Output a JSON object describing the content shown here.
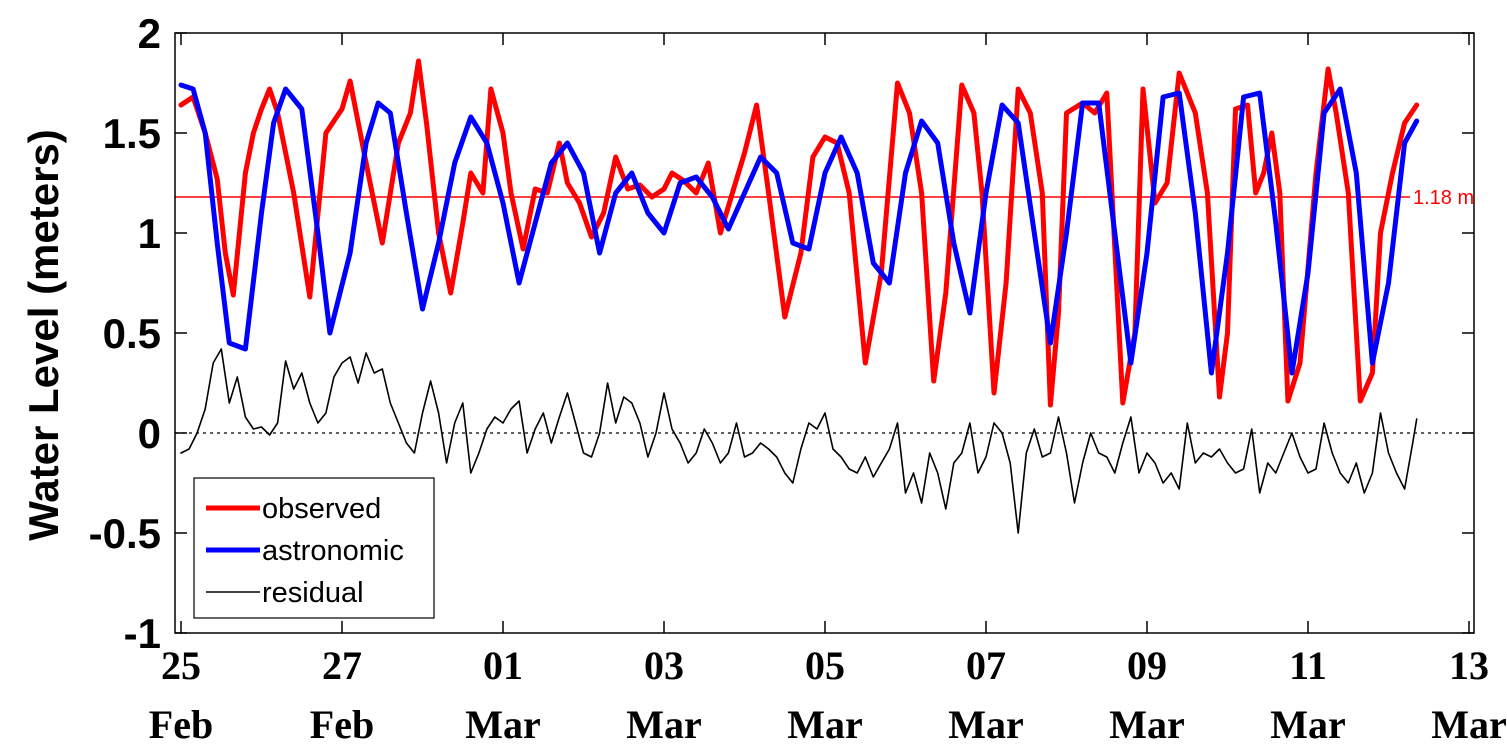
{
  "chart_data": {
    "type": "line",
    "title": "",
    "ylabel": "Water Level (meters)",
    "xlabel": "",
    "ylim": [
      -1,
      2
    ],
    "xlim_days": [
      0,
      16.4
    ],
    "yticks": [
      {
        "value": 2,
        "label": "2"
      },
      {
        "value": 1.5,
        "label": "1.5"
      },
      {
        "value": 1,
        "label": "1"
      },
      {
        "value": 0.5,
        "label": "0.5"
      },
      {
        "value": 0,
        "label": "0"
      },
      {
        "value": -0.5,
        "label": "-0.5"
      },
      {
        "value": -1,
        "label": "-1"
      }
    ],
    "xticks": [
      {
        "day": 0,
        "day_label": "25",
        "month_label": "Feb"
      },
      {
        "day": 2,
        "day_label": "27",
        "month_label": "Feb"
      },
      {
        "day": 4,
        "day_label": "01",
        "month_label": "Mar"
      },
      {
        "day": 6,
        "day_label": "03",
        "month_label": "Mar"
      },
      {
        "day": 8,
        "day_label": "05",
        "month_label": "Mar"
      },
      {
        "day": 10,
        "day_label": "07",
        "month_label": "Mar"
      },
      {
        "day": 12,
        "day_label": "09",
        "month_label": "Mar"
      },
      {
        "day": 14,
        "day_label": "11",
        "month_label": "Mar"
      },
      {
        "day": 16,
        "day_label": "13",
        "month_label": "Mar"
      }
    ],
    "reference_line": {
      "value": 1.18,
      "label": "1.18 m",
      "color": "#ff0000"
    },
    "zero_line": {
      "value": 0,
      "style": "dotted"
    },
    "legend": {
      "position": "bottom-left"
    },
    "series": [
      {
        "name": "observed",
        "color": "#ff0000",
        "x": [
          0.0,
          0.15,
          0.3,
          0.45,
          0.55,
          0.65,
          0.8,
          0.9,
          1.0,
          1.1,
          1.2,
          1.4,
          1.6,
          1.8,
          1.9,
          2.0,
          2.1,
          2.3,
          2.5,
          2.7,
          2.85,
          2.95,
          3.05,
          3.2,
          3.35,
          3.5,
          3.6,
          3.75,
          3.85,
          4.0,
          4.1,
          4.25,
          4.4,
          4.55,
          4.7,
          4.8,
          4.95,
          5.1,
          5.25,
          5.4,
          5.55,
          5.7,
          5.85,
          6.0,
          6.1,
          6.25,
          6.4,
          6.55,
          6.7,
          6.85,
          7.0,
          7.15,
          7.3,
          7.5,
          7.7,
          7.85,
          8.0,
          8.15,
          8.3,
          8.5,
          8.7,
          8.9,
          9.05,
          9.2,
          9.35,
          9.5,
          9.7,
          9.85,
          9.95,
          10.1,
          10.25,
          10.4,
          10.55,
          10.7,
          10.8,
          10.9,
          11.0,
          11.2,
          11.35,
          11.5,
          11.7,
          11.85,
          11.95,
          12.1,
          12.25,
          12.4,
          12.6,
          12.75,
          12.9,
          13.0,
          13.1,
          13.25,
          13.35,
          13.45,
          13.55,
          13.65,
          13.75,
          13.9,
          14.1,
          14.25,
          14.35,
          14.5,
          14.65,
          14.8,
          14.9,
          15.05,
          15.2,
          15.35
        ],
        "values": [
          1.64,
          1.68,
          1.5,
          1.27,
          0.9,
          0.69,
          1.3,
          1.5,
          1.62,
          1.72,
          1.6,
          1.2,
          0.68,
          1.5,
          1.56,
          1.62,
          1.76,
          1.35,
          0.95,
          1.45,
          1.6,
          1.86,
          1.55,
          1.0,
          0.7,
          1.05,
          1.3,
          1.2,
          1.72,
          1.5,
          1.2,
          0.92,
          1.22,
          1.2,
          1.45,
          1.25,
          1.15,
          0.98,
          1.1,
          1.38,
          1.22,
          1.24,
          1.18,
          1.22,
          1.3,
          1.26,
          1.2,
          1.35,
          1.0,
          1.2,
          1.4,
          1.64,
          1.2,
          0.58,
          0.9,
          1.38,
          1.48,
          1.45,
          1.2,
          0.35,
          0.8,
          1.75,
          1.6,
          1.2,
          0.26,
          0.7,
          1.74,
          1.6,
          1.2,
          0.2,
          0.75,
          1.72,
          1.6,
          1.2,
          0.14,
          0.6,
          1.6,
          1.65,
          1.6,
          1.7,
          0.15,
          0.5,
          1.72,
          1.15,
          1.25,
          1.8,
          1.6,
          1.2,
          0.18,
          0.5,
          1.62,
          1.64,
          1.2,
          1.3,
          1.5,
          1.2,
          0.16,
          0.35,
          1.3,
          1.82,
          1.6,
          1.2,
          0.16,
          0.3,
          1.0,
          1.3,
          1.55,
          1.64
        ]
      },
      {
        "name": "astronomic",
        "color": "#0000ff",
        "x": [
          0.0,
          0.15,
          0.3,
          0.45,
          0.6,
          0.8,
          1.0,
          1.15,
          1.3,
          1.5,
          1.7,
          1.85,
          2.1,
          2.3,
          2.45,
          2.6,
          2.8,
          3.0,
          3.2,
          3.4,
          3.6,
          3.8,
          4.0,
          4.2,
          4.4,
          4.6,
          4.8,
          5.0,
          5.2,
          5.4,
          5.6,
          5.8,
          6.0,
          6.2,
          6.4,
          6.6,
          6.8,
          7.0,
          7.2,
          7.4,
          7.6,
          7.8,
          8.0,
          8.2,
          8.4,
          8.6,
          8.8,
          9.0,
          9.2,
          9.4,
          9.6,
          9.8,
          10.0,
          10.2,
          10.4,
          10.6,
          10.8,
          11.0,
          11.2,
          11.4,
          11.6,
          11.8,
          12.0,
          12.2,
          12.4,
          12.6,
          12.8,
          13.0,
          13.2,
          13.4,
          13.6,
          13.8,
          14.0,
          14.2,
          14.4,
          14.6,
          14.8,
          15.0,
          15.2,
          15.35
        ],
        "values": [
          1.74,
          1.72,
          1.5,
          0.95,
          0.45,
          0.42,
          1.1,
          1.55,
          1.72,
          1.62,
          1.0,
          0.5,
          0.9,
          1.45,
          1.65,
          1.6,
          1.1,
          0.62,
          0.95,
          1.35,
          1.58,
          1.45,
          1.15,
          0.75,
          1.05,
          1.35,
          1.45,
          1.3,
          0.9,
          1.2,
          1.3,
          1.1,
          1.0,
          1.25,
          1.28,
          1.18,
          1.02,
          1.2,
          1.38,
          1.3,
          0.95,
          0.92,
          1.3,
          1.48,
          1.3,
          0.85,
          0.75,
          1.3,
          1.56,
          1.45,
          0.95,
          0.6,
          1.2,
          1.64,
          1.55,
          1.0,
          0.45,
          1.0,
          1.65,
          1.65,
          1.0,
          0.35,
          0.9,
          1.68,
          1.7,
          1.1,
          0.3,
          0.9,
          1.68,
          1.7,
          1.05,
          0.3,
          0.8,
          1.6,
          1.72,
          1.3,
          0.35,
          0.75,
          1.45,
          1.56
        ]
      },
      {
        "name": "residual",
        "color": "#000000",
        "x": [
          0.0,
          0.1,
          0.2,
          0.3,
          0.4,
          0.5,
          0.6,
          0.7,
          0.8,
          0.9,
          1.0,
          1.1,
          1.2,
          1.3,
          1.4,
          1.5,
          1.6,
          1.7,
          1.8,
          1.9,
          2.0,
          2.1,
          2.2,
          2.3,
          2.4,
          2.5,
          2.6,
          2.7,
          2.8,
          2.9,
          3.0,
          3.1,
          3.2,
          3.3,
          3.4,
          3.5,
          3.6,
          3.7,
          3.8,
          3.9,
          4.0,
          4.1,
          4.2,
          4.3,
          4.4,
          4.5,
          4.6,
          4.7,
          4.8,
          4.9,
          5.0,
          5.1,
          5.2,
          5.3,
          5.4,
          5.5,
          5.6,
          5.7,
          5.8,
          5.9,
          6.0,
          6.1,
          6.2,
          6.3,
          6.4,
          6.5,
          6.6,
          6.7,
          6.8,
          6.9,
          7.0,
          7.1,
          7.2,
          7.3,
          7.4,
          7.5,
          7.6,
          7.7,
          7.8,
          7.9,
          8.0,
          8.1,
          8.2,
          8.3,
          8.4,
          8.5,
          8.6,
          8.7,
          8.8,
          8.9,
          9.0,
          9.1,
          9.2,
          9.3,
          9.4,
          9.5,
          9.6,
          9.7,
          9.8,
          9.9,
          10.0,
          10.1,
          10.2,
          10.3,
          10.4,
          10.5,
          10.6,
          10.7,
          10.8,
          10.9,
          11.0,
          11.1,
          11.2,
          11.3,
          11.4,
          11.5,
          11.6,
          11.7,
          11.8,
          11.9,
          12.0,
          12.1,
          12.2,
          12.3,
          12.4,
          12.5,
          12.6,
          12.7,
          12.8,
          12.9,
          13.0,
          13.1,
          13.2,
          13.3,
          13.4,
          13.5,
          13.6,
          13.7,
          13.8,
          13.9,
          14.0,
          14.1,
          14.2,
          14.3,
          14.4,
          14.5,
          14.6,
          14.7,
          14.8,
          14.9,
          15.0,
          15.1,
          15.2,
          15.3,
          15.35
        ],
        "values": [
          -0.1,
          -0.08,
          0.0,
          0.12,
          0.35,
          0.42,
          0.15,
          0.28,
          0.08,
          0.02,
          0.03,
          -0.01,
          0.05,
          0.36,
          0.22,
          0.3,
          0.15,
          0.05,
          0.1,
          0.28,
          0.35,
          0.38,
          0.25,
          0.4,
          0.3,
          0.32,
          0.15,
          0.05,
          -0.05,
          -0.1,
          0.1,
          0.26,
          0.1,
          -0.15,
          0.05,
          0.15,
          -0.2,
          -0.1,
          0.02,
          0.08,
          0.05,
          0.12,
          0.16,
          -0.1,
          0.02,
          0.1,
          -0.05,
          0.08,
          0.2,
          0.05,
          -0.1,
          -0.12,
          0.0,
          0.25,
          0.05,
          0.18,
          0.15,
          0.05,
          -0.12,
          0.0,
          0.2,
          0.02,
          -0.05,
          -0.15,
          -0.1,
          0.02,
          -0.05,
          -0.15,
          -0.1,
          0.05,
          -0.12,
          -0.1,
          -0.05,
          -0.08,
          -0.12,
          -0.2,
          -0.25,
          -0.08,
          0.05,
          0.02,
          0.1,
          -0.08,
          -0.12,
          -0.18,
          -0.2,
          -0.12,
          -0.22,
          -0.15,
          -0.08,
          0.05,
          -0.3,
          -0.2,
          -0.35,
          -0.1,
          -0.2,
          -0.38,
          -0.15,
          -0.1,
          0.05,
          -0.2,
          -0.12,
          0.05,
          0.0,
          -0.15,
          -0.5,
          -0.1,
          0.02,
          -0.12,
          -0.1,
          0.08,
          -0.1,
          -0.35,
          -0.15,
          0.0,
          -0.1,
          -0.12,
          -0.2,
          -0.05,
          0.08,
          -0.2,
          -0.1,
          -0.15,
          -0.25,
          -0.2,
          -0.28,
          0.05,
          -0.15,
          -0.1,
          -0.12,
          -0.08,
          -0.15,
          -0.2,
          -0.18,
          0.02,
          -0.3,
          -0.15,
          -0.2,
          -0.1,
          0.0,
          -0.12,
          -0.2,
          -0.18,
          0.05,
          -0.1,
          -0.2,
          -0.25,
          -0.15,
          -0.3,
          -0.2,
          0.1,
          -0.1,
          -0.2,
          -0.28,
          -0.05,
          0.07
        ]
      }
    ]
  }
}
